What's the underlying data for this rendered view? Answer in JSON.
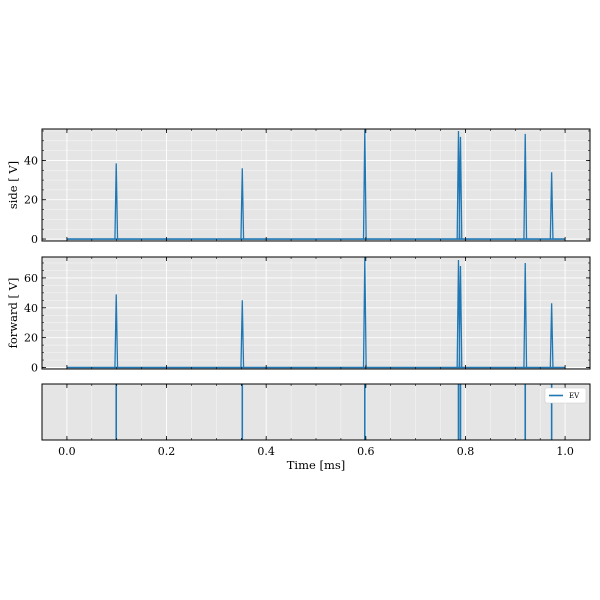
{
  "figure": {
    "background_color": "#ffffff",
    "axes_face_color": "#e5e5e5",
    "grid_color": "#ffffff",
    "spine_color": "#000000",
    "line_color": "#1f77b4"
  },
  "chart_data": [
    {
      "type": "line",
      "ylabel": "side [ V]",
      "xlim": [
        -0.05,
        1.05
      ],
      "ylim": [
        -1,
        56
      ],
      "yticks": [
        0,
        20,
        40
      ],
      "grid": true,
      "series": [
        {
          "baseline_x": [
            0.0,
            1.0
          ],
          "spikes": [
            {
              "x": 0.099,
              "y": 38.5
            },
            {
              "x": 0.352,
              "y": 36.0
            },
            {
              "x": 0.598,
              "y": 57.0
            },
            {
              "x": 0.786,
              "y": 55.0
            },
            {
              "x": 0.79,
              "y": 52.0
            },
            {
              "x": 0.92,
              "y": 53.5
            },
            {
              "x": 0.973,
              "y": 34.0
            }
          ]
        }
      ]
    },
    {
      "type": "line",
      "ylabel": "forward [ V]",
      "xlim": [
        -0.05,
        1.05
      ],
      "ylim": [
        -1,
        74
      ],
      "yticks": [
        0,
        20,
        40,
        60
      ],
      "grid": true,
      "series": [
        {
          "baseline_x": [
            0.0,
            1.0
          ],
          "spikes": [
            {
              "x": 0.099,
              "y": 49.0
            },
            {
              "x": 0.352,
              "y": 45.0
            },
            {
              "x": 0.598,
              "y": 75.0
            },
            {
              "x": 0.786,
              "y": 72.0
            },
            {
              "x": 0.79,
              "y": 68.0
            },
            {
              "x": 0.92,
              "y": 70.0
            },
            {
              "x": 0.973,
              "y": 43.0
            }
          ]
        }
      ]
    },
    {
      "type": "line",
      "xlabel": "Time [ms]",
      "xlim": [
        -0.05,
        1.05
      ],
      "xticks": [
        0.0,
        0.2,
        0.4,
        0.6,
        0.8,
        1.0
      ],
      "xtick_labels": [
        "0.0",
        "0.2",
        "0.4",
        "0.6",
        "0.8",
        "1.0"
      ],
      "grid": true,
      "legend_position": "top-right",
      "series": [
        {
          "name": "EV",
          "events": [
            0.099,
            0.352,
            0.598,
            0.786,
            0.79,
            0.92,
            0.973
          ]
        }
      ]
    }
  ]
}
